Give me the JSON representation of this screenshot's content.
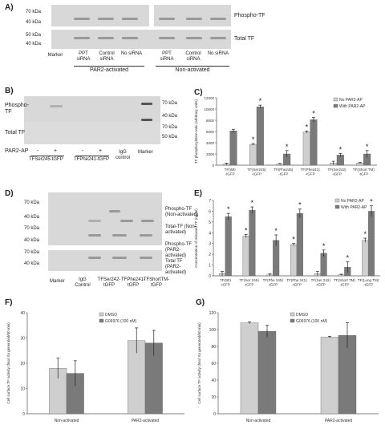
{
  "panel_a": {
    "letter": "A)",
    "mw": [
      "70 kDa",
      "40 kDa",
      "50 kDa",
      "40 kDa"
    ],
    "right_labels": [
      "Phospho-TF",
      "Total TF"
    ],
    "lanes": [
      "Marker",
      "PPT siRNA",
      "Control siRNA",
      "No siRNA",
      "PPT siRNA",
      "Control siRNA",
      "No siRNA"
    ],
    "groups": [
      "PAR2-activated",
      "Non-activated"
    ]
  },
  "panel_b": {
    "letter": "B)",
    "left_labels": [
      "Phospho-TF",
      "Total TF"
    ],
    "mw": [
      "70 kDa",
      "40 kDa",
      "70 kDa",
      "50 kDa"
    ],
    "par2_label": "PAR2-AP",
    "signs": [
      "-",
      "+",
      "-",
      "+"
    ],
    "groups": [
      "TFSer245-tGFP",
      "TFPhe241-tGFP"
    ],
    "igg": "IgG control",
    "marker": "Marker"
  },
  "panel_c": {
    "letter": "C)",
    "chart_data": {
      "type": "bar",
      "ylabel": "TF phosphorylation ratio (arbitrary units)",
      "ylim": [
        0,
        12000
      ],
      "yticks": [
        0,
        2000,
        4000,
        6000,
        8000,
        10000,
        12000
      ],
      "categories": [
        "TF(Wt)-tGFP",
        "TF(Ser245)-tGFP",
        "TF(Phe245)-tGFP",
        "TF(Phe241)-tGFP",
        "TF(Ser242)-tGFP",
        "TF(Short TM)-tGFP"
      ],
      "series": [
        {
          "name": "No PAR2-AP",
          "color": "#cfcfcf",
          "values": [
            200,
            3700,
            200,
            5900,
            400,
            400
          ],
          "errors": [
            150,
            150,
            100,
            200,
            300,
            100
          ]
        },
        {
          "name": "With PAR2-AP",
          "color": "#7a7a7a",
          "values": [
            6100,
            10400,
            2000,
            8100,
            1800,
            2000
          ],
          "errors": [
            300,
            300,
            600,
            400,
            300,
            600
          ]
        }
      ],
      "stars": [
        "*",
        "*",
        "*",
        "*",
        "*"
      ],
      "legend": "top-right"
    }
  },
  "panel_d": {
    "letter": "D)",
    "mw": [
      "70 kDa",
      "40 kDa",
      "70 kDa",
      "40 kDa",
      "70 kDa",
      "40 kDa"
    ],
    "right_labels": [
      "Phospho-TF (Non-activated)",
      "Total-TF (Non-activated)",
      "Phospho-TF (PAR2-activated)",
      "Total TF (PAR2-activated)"
    ],
    "lanes": [
      "Marker",
      "IgG Control",
      "TFSer242-tGFP",
      "TFPhe241-tGFP",
      "TFShortTM-tGFP"
    ]
  },
  "panel_e": {
    "letter": "E)",
    "chart_data": {
      "type": "bar",
      "ylabel": "Concentration of released TF (ng/ml)",
      "ylim": [
        0,
        7
      ],
      "yticks": [
        0,
        1,
        2,
        3,
        4,
        5,
        6,
        7
      ],
      "categories": [
        "TF(Wt)-tGFP",
        "TF(Ser 245)-tGFP",
        "TF(Phe 245)-tGFP",
        "TF(Phe 241)-tGFP",
        "TF(Ser 242)-tGFP",
        "TF(Short TM)-tGFP",
        "TF(Long TM)-tGFP"
      ],
      "series": [
        {
          "name": "No PAR2-AP",
          "color": "#cfcfcf",
          "values": [
            0.2,
            3.7,
            0.1,
            2.9,
            0.2,
            0.1,
            3.3
          ],
          "errors": [
            0.2,
            0.15,
            0.1,
            0.1,
            0.2,
            0.05,
            0.2
          ]
        },
        {
          "name": "With PAR2-AP",
          "color": "#7a7a7a",
          "values": [
            5.5,
            6.1,
            3.3,
            5.8,
            2.1,
            0.8,
            6.0
          ],
          "errors": [
            0.3,
            0.3,
            0.5,
            0.4,
            0.3,
            0.5,
            0.5
          ]
        }
      ],
      "stars": [
        "*",
        "*",
        "*",
        "*",
        "*",
        "*",
        "*"
      ],
      "legend": "top-right"
    }
  },
  "panel_f": {
    "letter": "F)",
    "chart_data": {
      "type": "bar",
      "ylabel": "Cell surface TF activity (fmol Xa generated/60 min)",
      "ylim": [
        0,
        40
      ],
      "yticks": [
        0,
        10,
        20,
        30,
        40
      ],
      "categories": [
        "Non-activated",
        "PAR2-activated"
      ],
      "series": [
        {
          "name": "DMSO",
          "color": "#cfcfcf",
          "values": [
            18,
            29
          ],
          "errors": [
            4,
            5
          ]
        },
        {
          "name": "G06976 (100 nM)",
          "color": "#7a7a7a",
          "values": [
            16,
            28
          ],
          "errors": [
            5,
            5
          ]
        }
      ],
      "legend": "top-center"
    }
  },
  "panel_g": {
    "letter": "G)",
    "chart_data": {
      "type": "bar",
      "ylabel": "Cell surface TF activity (fmol Xa generated/60 min)",
      "ylim": [
        0,
        120
      ],
      "yticks": [
        0,
        20,
        40,
        60,
        80,
        100,
        120
      ],
      "categories": [
        "Non-activated",
        "PAR2-activated"
      ],
      "series": [
        {
          "name": "DMSO",
          "color": "#cfcfcf",
          "values": [
            108,
            91
          ],
          "errors": [
            1,
            1
          ]
        },
        {
          "name": "G06976 (100 nM)",
          "color": "#7a7a7a",
          "values": [
            98,
            93
          ],
          "errors": [
            7,
            15
          ]
        }
      ],
      "legend": "top-center"
    }
  }
}
